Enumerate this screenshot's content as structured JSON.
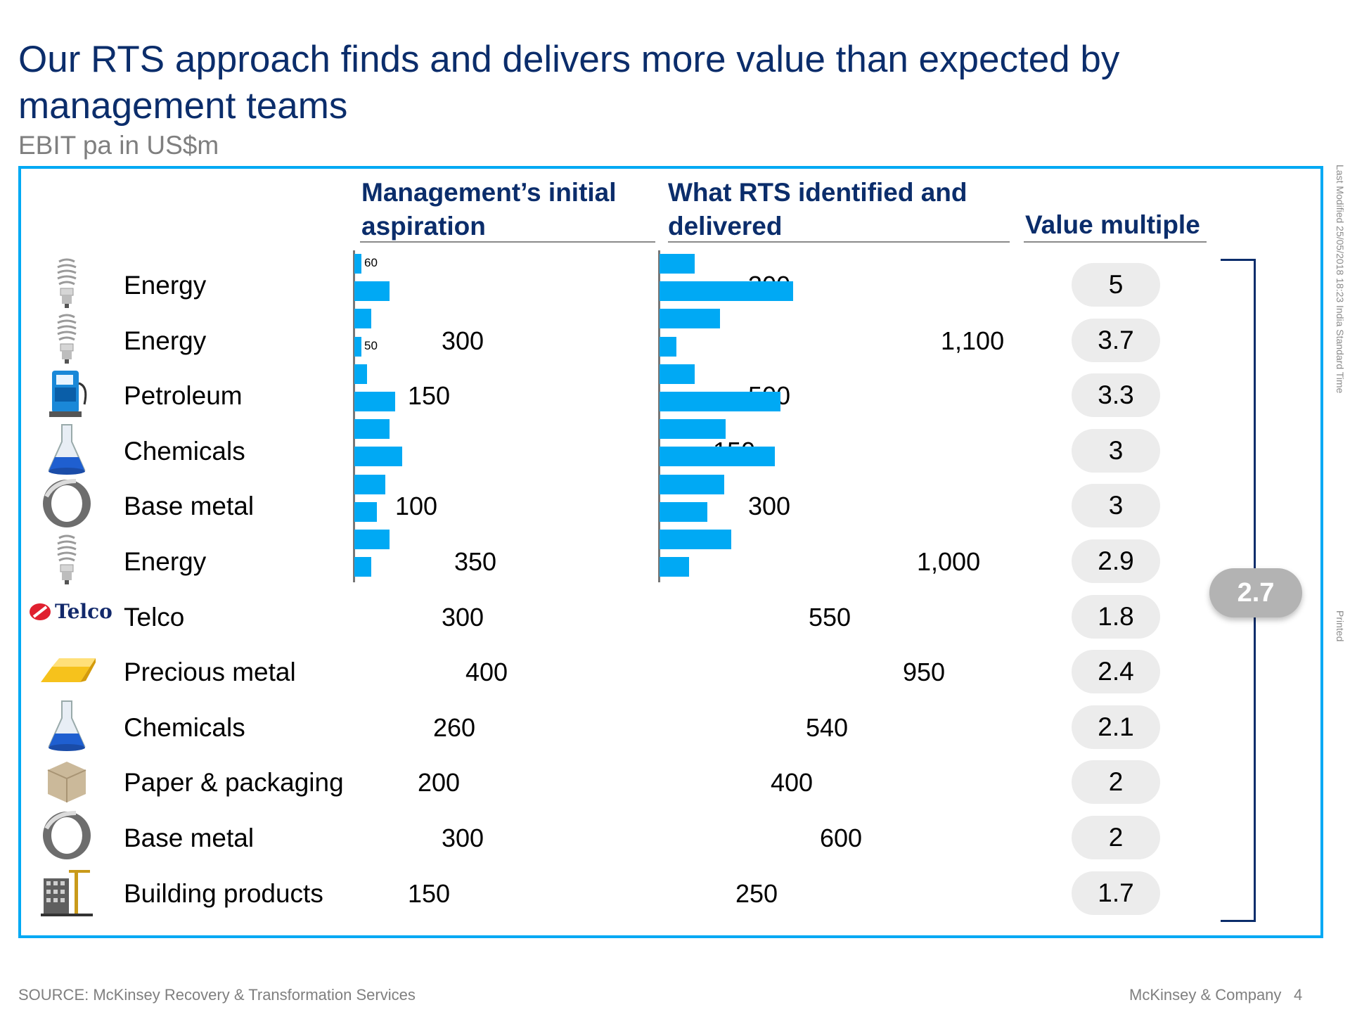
{
  "title": "Our RTS approach finds and delivers more value than expected by management teams",
  "subtitle": "EBIT pa in US$m",
  "columns": {
    "management": "Management’s initial aspiration",
    "rts": "What RTS identified and delivered",
    "multiple": "Value multiple"
  },
  "average": "2.7",
  "side_notes": {
    "modified": "Last Modified 25/05/2018 18:23 India Standard Time",
    "printed": "Printed"
  },
  "footer": {
    "source": "SOURCE: McKinsey Recovery & Transformation Services",
    "company": "McKinsey & Company",
    "page": "4"
  },
  "chart_data": {
    "type": "table",
    "colors": {
      "bar": "#00a9f4",
      "title": "#0b2d6b",
      "frame": "#00a9f4"
    },
    "rows": [
      {
        "sector": "Energy",
        "icon": "bulb-icon",
        "management": "",
        "management_small": "60",
        "rts": "300",
        "multiple": "5"
      },
      {
        "sector": "Energy",
        "icon": "bulb-icon",
        "management": "300",
        "management_small": "50",
        "rts": "1,100",
        "multiple": "3.7"
      },
      {
        "sector": "Petroleum",
        "icon": "fuel-pump-icon",
        "management": "150",
        "rts": "500",
        "multiple": "3.3"
      },
      {
        "sector": "Chemicals",
        "icon": "flask-icon",
        "management": "",
        "rts": "150",
        "multiple": "3"
      },
      {
        "sector": "Base metal",
        "icon": "metal-ring-icon",
        "management": "100",
        "rts": "300",
        "multiple": "3"
      },
      {
        "sector": "Energy",
        "icon": "bulb-icon",
        "management": "350",
        "rts": "1,000",
        "multiple": "2.9"
      },
      {
        "sector": "Telco",
        "icon": "telco-logo",
        "management": "300",
        "rts": "550",
        "multiple": "1.8"
      },
      {
        "sector": "Precious metal",
        "icon": "gold-bar-icon",
        "management": "400",
        "rts": "950",
        "multiple": "2.4"
      },
      {
        "sector": "Chemicals",
        "icon": "flask-icon",
        "management": "260",
        "rts": "540",
        "multiple": "2.1"
      },
      {
        "sector": "Paper & packaging",
        "icon": "box-icon",
        "management": "200",
        "rts": "400",
        "multiple": "2"
      },
      {
        "sector": "Base metal",
        "icon": "metal-ring-icon",
        "management": "300",
        "rts": "600",
        "multiple": "2"
      },
      {
        "sector": "Building products",
        "icon": "building-crane-icon",
        "management": "150",
        "rts": "250",
        "multiple": "1.7"
      }
    ],
    "management_bars": [
      10,
      50,
      24,
      10,
      18,
      58,
      50,
      68,
      44,
      32,
      50,
      24
    ],
    "rts_bars": [
      50,
      190,
      86,
      24,
      50,
      172,
      94,
      164,
      92,
      68,
      102,
      42
    ]
  }
}
